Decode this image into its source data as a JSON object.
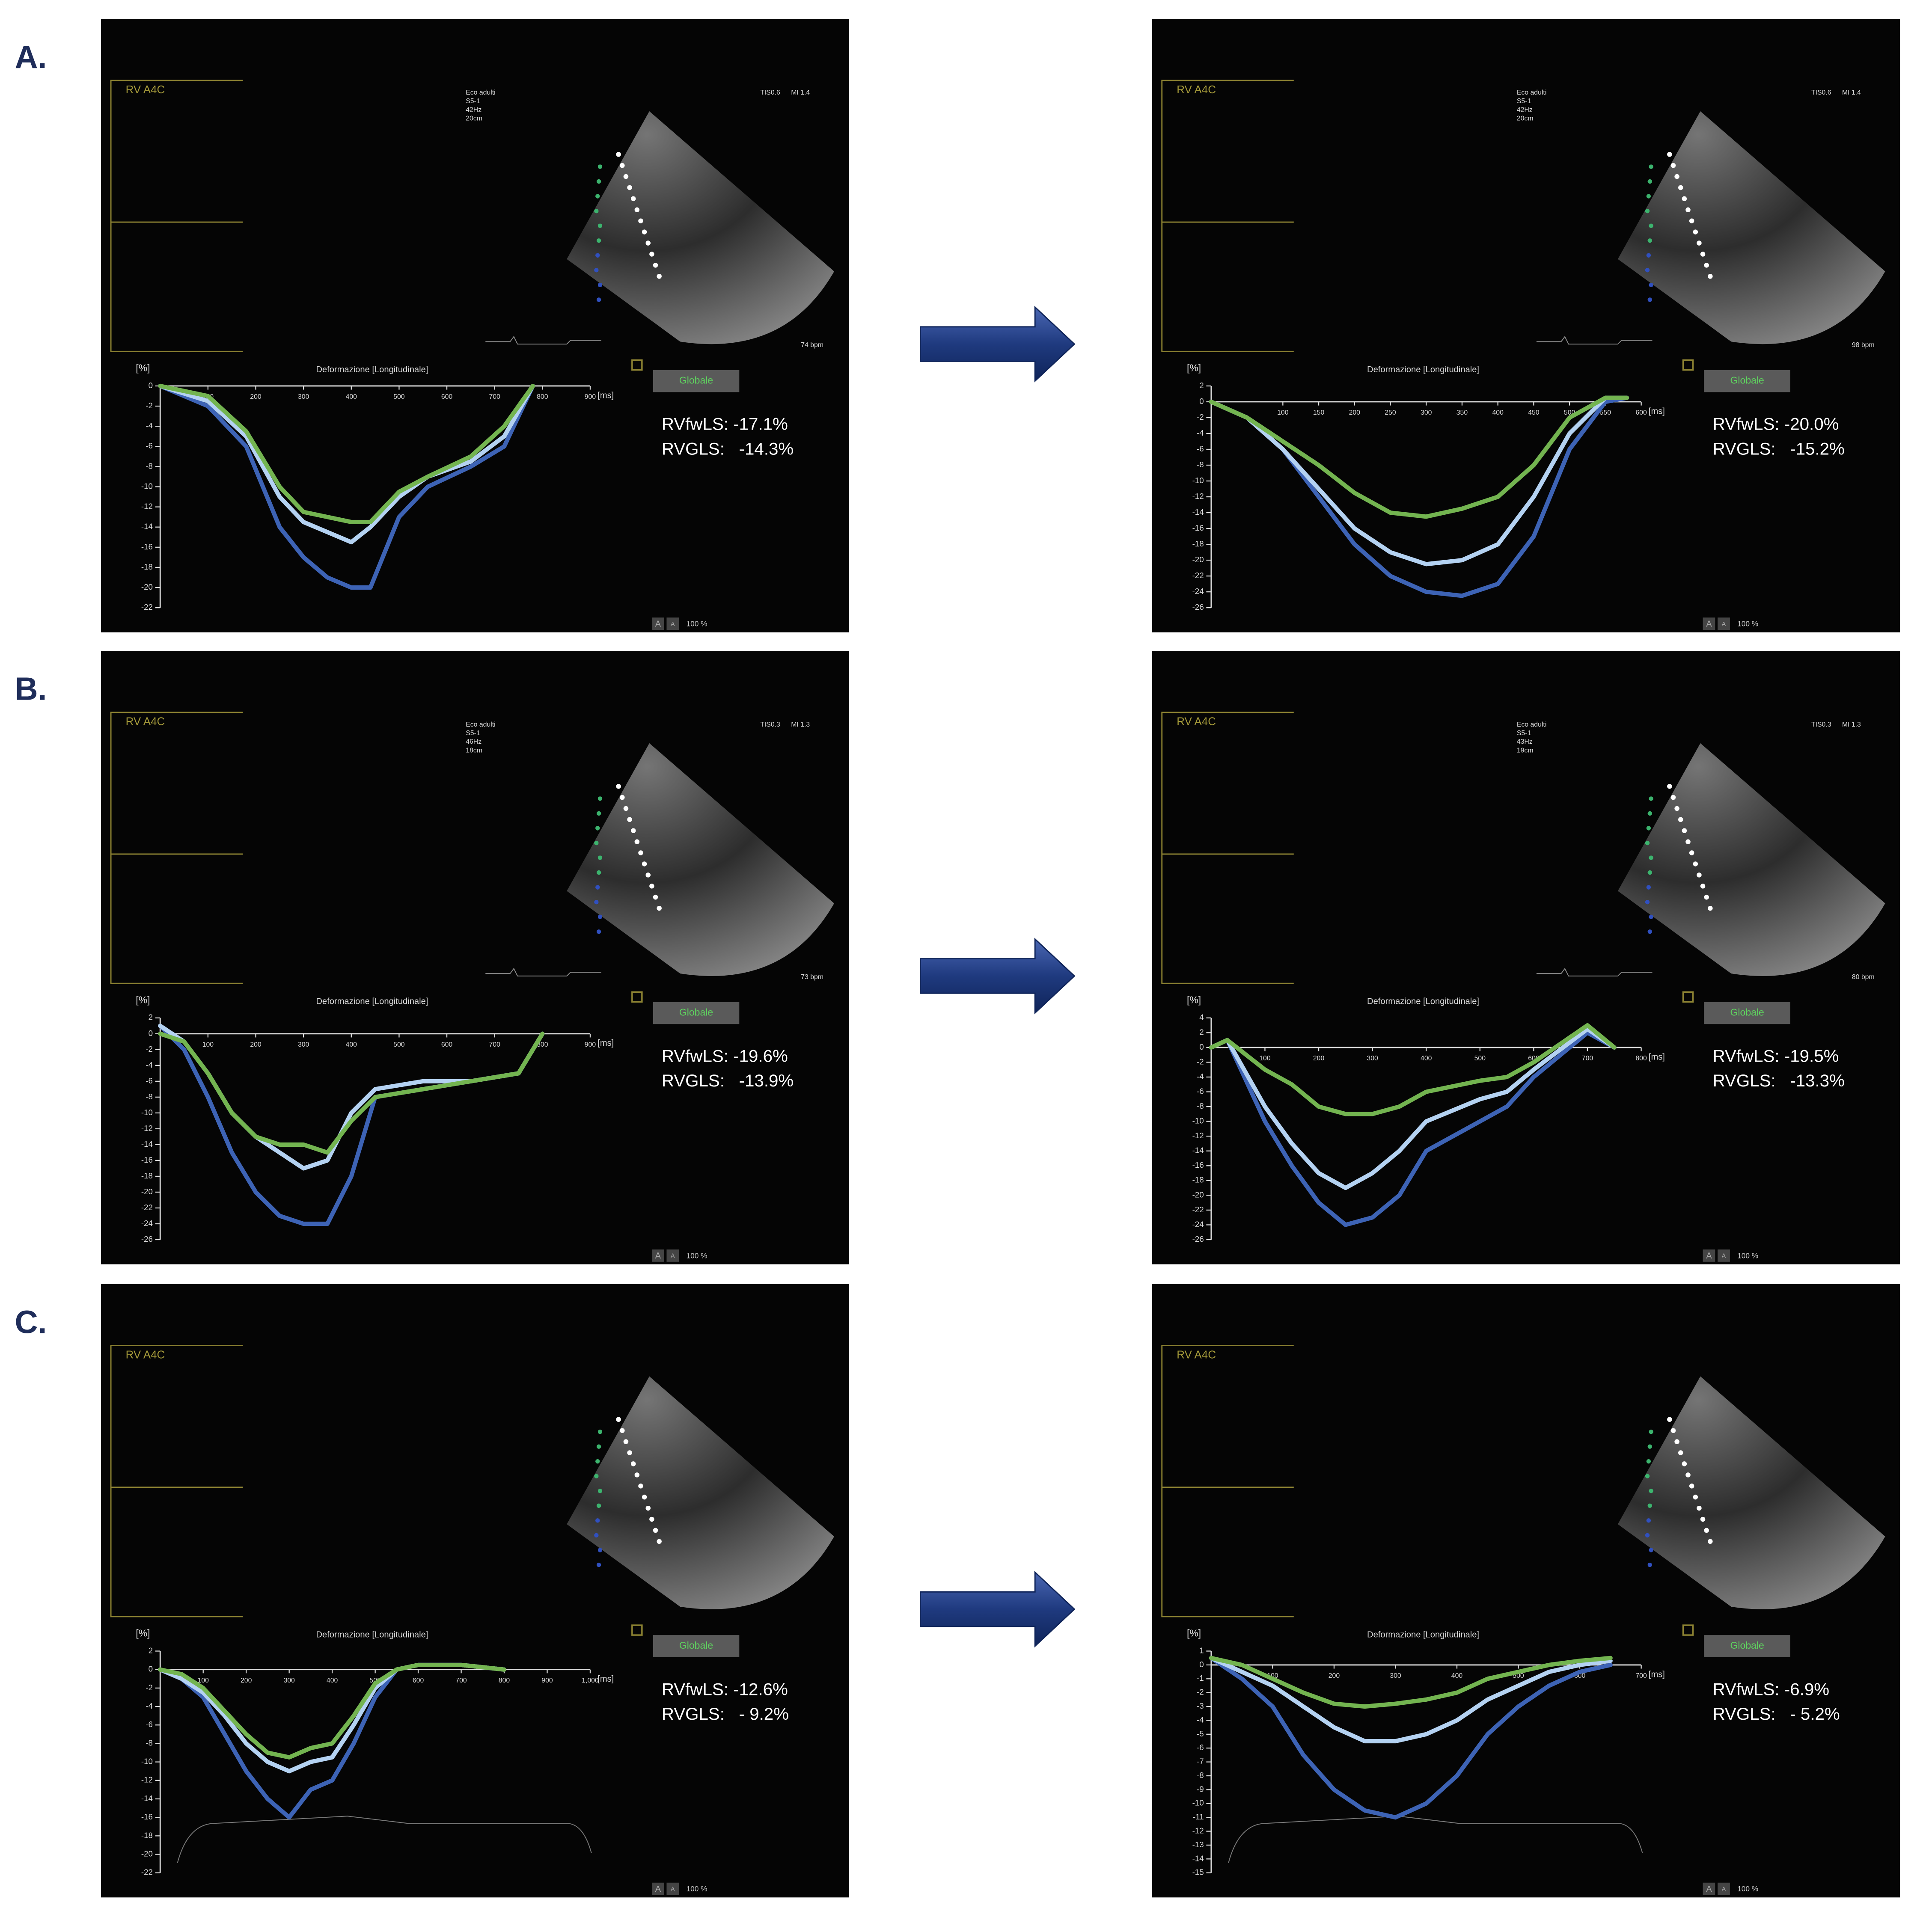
{
  "chart_data": [
    {
      "type": "line",
      "panel_label": "A.",
      "view": "RV A4C",
      "title": "Deformazione [Longitudinale]",
      "y_unit": "[%]",
      "x_unit": "[ms]",
      "button": "Globale",
      "zoom": "100 %",
      "zoom_buttons": [
        "A",
        "A"
      ],
      "info": [
        "Eco adulti",
        "S5-1",
        "42Hz",
        "20cm"
      ],
      "tis": "TIS0.6",
      "mi": "MI 1.4",
      "bpm": "74 bpm",
      "metrics": [
        "RVfwLS: -17.1%",
        "RVGLS:   -14.3%"
      ],
      "xlim": [
        0,
        900
      ],
      "xticks": [
        100,
        200,
        300,
        400,
        500,
        600,
        700,
        800,
        900
      ],
      "ylim": [
        -22,
        0
      ],
      "yticks": [
        0,
        -2,
        -4,
        -6,
        -8,
        -10,
        -12,
        -14,
        -16,
        -18,
        -20,
        -22
      ],
      "x": [
        0,
        100,
        180,
        250,
        300,
        350,
        400,
        440,
        500,
        560,
        650,
        720,
        780
      ],
      "series": [
        {
          "color": "#3d63b5",
          "values": [
            0,
            -2,
            -6,
            -14,
            -17,
            -19,
            -20,
            -20,
            -13,
            -10,
            -8,
            -6,
            0
          ]
        },
        {
          "color": "#b4d2f2",
          "values": [
            0,
            -1.5,
            -5,
            -11,
            -13.5,
            -14.5,
            -15.5,
            -14,
            -11,
            -9,
            -7.5,
            -5,
            0
          ]
        },
        {
          "color": "#73b450",
          "values": [
            0,
            -1,
            -4.5,
            -10,
            -12.5,
            -13,
            -13.5,
            -13.5,
            -10.5,
            -9,
            -7,
            -4,
            0
          ]
        }
      ]
    },
    {
      "type": "line",
      "view": "RV A4C",
      "title": "Deformazione [Longitudinale]",
      "y_unit": "[%]",
      "x_unit": "[ms]",
      "button": "Globale",
      "zoom": "100 %",
      "zoom_buttons": [
        "A",
        "A"
      ],
      "info": [
        "Eco adulti",
        "S5-1",
        "42Hz",
        "20cm"
      ],
      "tis": "TIS0.6",
      "mi": "MI 1.4",
      "bpm": "98 bpm",
      "metrics": [
        "RVfwLS: -20.0%",
        "RVGLS:   -15.2%"
      ],
      "xlim": [
        0,
        600
      ],
      "xticks": [
        100,
        150,
        200,
        250,
        300,
        350,
        400,
        450,
        500,
        550,
        600
      ],
      "ylim": [
        -26,
        2
      ],
      "yticks": [
        2,
        0,
        -2,
        -4,
        -6,
        -8,
        -10,
        -12,
        -14,
        -16,
        -18,
        -20,
        -22,
        -24,
        -26
      ],
      "x": [
        0,
        50,
        100,
        150,
        200,
        250,
        300,
        350,
        400,
        450,
        500,
        550,
        580
      ],
      "series": [
        {
          "color": "#3d63b5",
          "values": [
            0,
            -2,
            -6,
            -12,
            -18,
            -22,
            -24,
            -24.5,
            -23,
            -17,
            -6,
            0,
            0.5
          ]
        },
        {
          "color": "#b4d2f2",
          "values": [
            0,
            -2,
            -6,
            -11,
            -16,
            -19,
            -20.5,
            -20,
            -18,
            -12,
            -4,
            0.5,
            0.5
          ]
        },
        {
          "color": "#73b450",
          "values": [
            0,
            -2,
            -5,
            -8,
            -11.5,
            -14,
            -14.5,
            -13.5,
            -12,
            -8,
            -2,
            0.5,
            0.5
          ]
        }
      ]
    },
    {
      "type": "line",
      "panel_label": "B.",
      "view": "RV A4C",
      "title": "Deformazione [Longitudinale]",
      "y_unit": "[%]",
      "x_unit": "[ms]",
      "button": "Globale",
      "zoom": "100 %",
      "zoom_buttons": [
        "A",
        "A"
      ],
      "info": [
        "Eco adulti",
        "S5-1",
        "46Hz",
        "18cm"
      ],
      "tis": "TIS0.3",
      "mi": "MI 1.3",
      "bpm": "73 bpm",
      "metrics": [
        "RVfwLS: -19.6%",
        "RVGLS:   -13.9%"
      ],
      "xlim": [
        0,
        900
      ],
      "xticks": [
        100,
        200,
        300,
        400,
        500,
        600,
        700,
        800,
        900
      ],
      "ylim": [
        -26,
        2
      ],
      "yticks": [
        2,
        0,
        -2,
        -4,
        -6,
        -8,
        -10,
        -12,
        -14,
        -16,
        -18,
        -20,
        -22,
        -24,
        -26
      ],
      "x": [
        0,
        50,
        100,
        150,
        200,
        250,
        300,
        350,
        400,
        450,
        550,
        650,
        750,
        800
      ],
      "series": [
        {
          "color": "#3d63b5",
          "values": [
            1,
            -2,
            -8,
            -15,
            -20,
            -23,
            -24,
            -24,
            -18,
            -8,
            -7,
            -6,
            -5,
            0
          ]
        },
        {
          "color": "#b4d2f2",
          "values": [
            1,
            -1,
            -5,
            -10,
            -13,
            -15,
            -17,
            -16,
            -10,
            -7,
            -6,
            -6,
            -5,
            0
          ]
        },
        {
          "color": "#73b450",
          "values": [
            0,
            -1,
            -5,
            -10,
            -13,
            -14,
            -14,
            -15,
            -11,
            -8,
            -7,
            -6,
            -5,
            0
          ]
        }
      ]
    },
    {
      "type": "line",
      "view": "RV A4C",
      "title": "Deformazione [Longitudinale]",
      "y_unit": "[%]",
      "x_unit": "[ms]",
      "button": "Globale",
      "zoom": "100 %",
      "zoom_buttons": [
        "A",
        "A"
      ],
      "info": [
        "Eco adulti",
        "S5-1",
        "43Hz",
        "19cm"
      ],
      "tis": "TIS0.3",
      "mi": "MI 1.3",
      "bpm": "80 bpm",
      "metrics": [
        "RVfwLS: -19.5%",
        "RVGLS:   -13.3%"
      ],
      "xlim": [
        0,
        800
      ],
      "xticks": [
        100,
        200,
        300,
        400,
        500,
        600,
        700,
        800
      ],
      "ylim": [
        -26,
        4
      ],
      "yticks": [
        4,
        2,
        0,
        -2,
        -4,
        -6,
        -8,
        -10,
        -12,
        -14,
        -16,
        -18,
        -20,
        -22,
        -24,
        -26
      ],
      "x": [
        0,
        30,
        100,
        150,
        200,
        250,
        300,
        350,
        400,
        500,
        550,
        600,
        700,
        750
      ],
      "series": [
        {
          "color": "#3d63b5",
          "values": [
            0,
            1,
            -10,
            -16,
            -21,
            -24,
            -23,
            -20,
            -14,
            -10,
            -8,
            -4,
            2,
            0
          ]
        },
        {
          "color": "#b4d2f2",
          "values": [
            0,
            1,
            -8,
            -13,
            -17,
            -19,
            -17,
            -14,
            -10,
            -7,
            -6,
            -3,
            2.5,
            0
          ]
        },
        {
          "color": "#73b450",
          "values": [
            0,
            1,
            -3,
            -5,
            -8,
            -9,
            -9,
            -8,
            -6,
            -4.5,
            -4,
            -2,
            3,
            0
          ]
        }
      ]
    },
    {
      "type": "line",
      "panel_label": "C.",
      "view": "RV A4C",
      "title": "Deformazione [Longitudinale]",
      "y_unit": "[%]",
      "x_unit": "[ms]",
      "button": "Globale",
      "zoom": "100 %",
      "zoom_buttons": [
        "A",
        "A"
      ],
      "metrics": [
        "RVfwLS: -12.6%",
        "RVGLS:   - 9.2%"
      ],
      "xlim": [
        0,
        1000
      ],
      "xticks": [
        100,
        200,
        300,
        400,
        500,
        600,
        700,
        800,
        900,
        {
          "value": 1000,
          "label": "1,000"
        }
      ],
      "ylim": [
        -22,
        2
      ],
      "yticks": [
        2,
        0,
        -2,
        -4,
        -6,
        -8,
        -10,
        -12,
        -14,
        -16,
        -18,
        -20,
        -22
      ],
      "x": [
        0,
        50,
        100,
        150,
        200,
        250,
        300,
        350,
        400,
        450,
        500,
        550,
        600,
        700,
        800
      ],
      "series": [
        {
          "color": "#3d63b5",
          "values": [
            0,
            -1,
            -3,
            -7,
            -11,
            -14,
            -16,
            -13,
            -12,
            -8,
            -3,
            0,
            0.5,
            0.5,
            0
          ]
        },
        {
          "color": "#b4d2f2",
          "values": [
            0,
            -1,
            -2.5,
            -5,
            -8,
            -10,
            -11,
            -10,
            -9.5,
            -6,
            -2,
            0,
            0.5,
            0.5,
            0
          ]
        },
        {
          "color": "#73b450",
          "values": [
            0,
            -0.5,
            -2,
            -4.5,
            -7,
            -9,
            -9.5,
            -8.5,
            -8,
            -5,
            -1.5,
            0,
            0.5,
            0.5,
            0
          ]
        }
      ]
    },
    {
      "type": "line",
      "view": "RV A4C",
      "title": "Deformazione [Longitudinale]",
      "y_unit": "[%]",
      "x_unit": "[ms]",
      "button": "Globale",
      "zoom": "100 %",
      "zoom_buttons": [
        "A",
        "A"
      ],
      "metrics": [
        "RVfwLS: -6.9%",
        "RVGLS:   - 5.2%"
      ],
      "xlim": [
        0,
        700
      ],
      "xticks": [
        100,
        200,
        300,
        400,
        500,
        600,
        700
      ],
      "ylim": [
        -15,
        1
      ],
      "yticks": [
        1,
        0,
        -1,
        -2,
        -3,
        -4,
        -5,
        -6,
        -7,
        -8,
        -9,
        -10,
        -11,
        -12,
        -13,
        -14,
        -15
      ],
      "x": [
        0,
        50,
        100,
        150,
        200,
        250,
        300,
        350,
        400,
        450,
        500,
        550,
        600,
        650
      ],
      "series": [
        {
          "color": "#3d63b5",
          "values": [
            0.5,
            -1,
            -3,
            -6.5,
            -9,
            -10.5,
            -11,
            -10,
            -8,
            -5,
            -3,
            -1.5,
            -0.5,
            0
          ]
        },
        {
          "color": "#b4d2f2",
          "values": [
            0.5,
            -0.5,
            -1.5,
            -3,
            -4.5,
            -5.5,
            -5.5,
            -5,
            -4,
            -2.5,
            -1.5,
            -0.5,
            0,
            0.3
          ]
        },
        {
          "color": "#73b450",
          "values": [
            0.5,
            0,
            -1,
            -2,
            -2.8,
            -3,
            -2.8,
            -2.5,
            -2,
            -1,
            -0.5,
            0,
            0.3,
            0.5
          ]
        }
      ]
    }
  ]
}
